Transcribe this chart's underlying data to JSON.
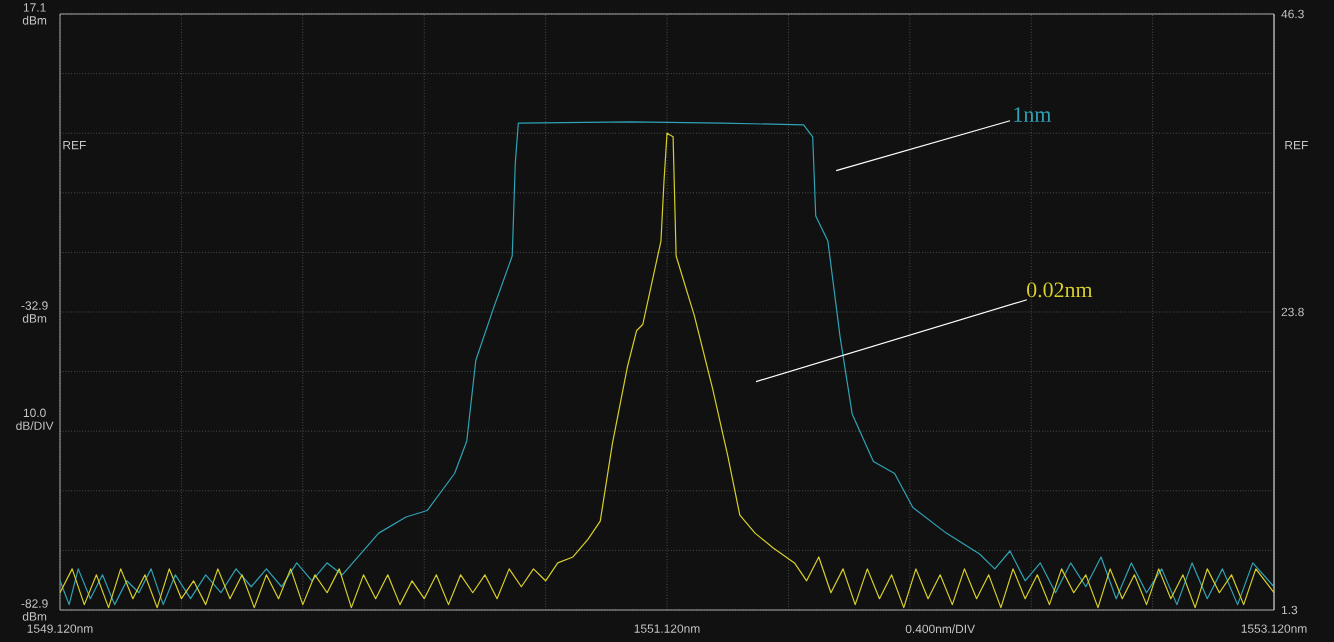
{
  "chart_data": {
    "type": "line",
    "xlim": [
      1549.12,
      1553.12
    ],
    "ylim": [
      -82.9,
      17.1
    ],
    "y2lim": [
      1.3,
      46.3
    ],
    "xticks": [
      {
        "value": 1549.12,
        "label": "1549.120nm"
      },
      {
        "value": 1549.52,
        "label": null
      },
      {
        "value": 1549.92,
        "label": null
      },
      {
        "value": 1550.32,
        "label": null
      },
      {
        "value": 1550.72,
        "label": null
      },
      {
        "value": 1551.12,
        "label": "1551.120nm"
      },
      {
        "value": 1551.52,
        "label": null
      },
      {
        "value": 1551.92,
        "label": null
      },
      {
        "value": 1552.32,
        "label": null
      },
      {
        "value": 1552.72,
        "label": null
      },
      {
        "value": 1553.12,
        "label": "1553.120nm"
      }
    ],
    "yticks": [
      {
        "value": -82.9,
        "label": "-82.9 dBm"
      },
      {
        "value": -72.9,
        "label": null
      },
      {
        "value": -62.9,
        "label": null
      },
      {
        "value": -52.9,
        "label": null
      },
      {
        "value": -42.9,
        "label": null
      },
      {
        "value": -32.9,
        "label": "-32.9 dBm"
      },
      {
        "value": -22.9,
        "label": null
      },
      {
        "value": -12.9,
        "label": null
      },
      {
        "value": -2.9,
        "label": null
      },
      {
        "value": 7.1,
        "label": null
      },
      {
        "value": 17.1,
        "label": "17.1 dBm"
      }
    ],
    "y2ticks": [
      1.3,
      23.8,
      46.3
    ],
    "grid": true,
    "xlabel": "0.400nm/DIV",
    "ylabel": "10.0 dB/DIV",
    "annotations": [
      "REF",
      "REF"
    ],
    "series": [
      {
        "name": "1nm",
        "color": "#2fa3b5",
        "x": [
          1549.12,
          1549.15,
          1549.18,
          1549.22,
          1549.26,
          1549.3,
          1549.34,
          1549.38,
          1549.42,
          1549.46,
          1549.5,
          1549.55,
          1549.6,
          1549.65,
          1549.7,
          1549.75,
          1549.8,
          1549.85,
          1549.9,
          1549.95,
          1550.0,
          1550.05,
          1550.11,
          1550.17,
          1550.26,
          1550.33,
          1550.42,
          1550.46,
          1550.49,
          1550.55,
          1550.61,
          1550.62,
          1550.63,
          1551.0,
          1551.3,
          1551.57,
          1551.6,
          1551.61,
          1551.65,
          1551.69,
          1551.73,
          1551.8,
          1551.87,
          1551.93,
          1552.04,
          1552.15,
          1552.2,
          1552.25,
          1552.3,
          1552.35,
          1552.4,
          1552.45,
          1552.5,
          1552.55,
          1552.6,
          1552.65,
          1552.7,
          1552.75,
          1552.8,
          1552.85,
          1552.9,
          1552.95,
          1553.0,
          1553.05,
          1553.12
        ],
        "values": [
          -78,
          -82,
          -76,
          -81,
          -77,
          -82,
          -78,
          -80,
          -76,
          -82,
          -77,
          -81,
          -77,
          -80,
          -76,
          -79,
          -76,
          -79,
          -75,
          -78,
          -75,
          -77,
          -73.5,
          -70,
          -67.3,
          -66.2,
          -60,
          -54.6,
          -41,
          -32,
          -23.5,
          -8,
          -1.2,
          -1.0,
          -1.2,
          -1.5,
          -3.5,
          -16.8,
          -21,
          -37,
          -50,
          -58,
          -60,
          -65.7,
          -70,
          -73.5,
          -76,
          -73,
          -78,
          -75,
          -80,
          -75,
          -79,
          -74,
          -81,
          -75,
          -80,
          -76,
          -82,
          -75,
          -81,
          -76,
          -82,
          -75,
          -79
        ]
      },
      {
        "name": "0.02nm",
        "color": "#d8cf2a",
        "x": [
          1549.12,
          1549.16,
          1549.2,
          1549.24,
          1549.28,
          1549.32,
          1549.36,
          1549.4,
          1549.44,
          1549.48,
          1549.52,
          1549.56,
          1549.6,
          1549.64,
          1549.68,
          1549.72,
          1549.76,
          1549.8,
          1549.84,
          1549.88,
          1549.92,
          1549.96,
          1550.0,
          1550.04,
          1550.08,
          1550.12,
          1550.16,
          1550.2,
          1550.24,
          1550.28,
          1550.32,
          1550.36,
          1550.4,
          1550.44,
          1550.48,
          1550.52,
          1550.56,
          1550.6,
          1550.64,
          1550.68,
          1550.72,
          1550.76,
          1550.81,
          1550.86,
          1550.9,
          1550.94,
          1550.99,
          1551.02,
          1551.04,
          1551.1,
          1551.11,
          1551.12,
          1551.14,
          1551.15,
          1551.21,
          1551.27,
          1551.32,
          1551.36,
          1551.41,
          1551.47,
          1551.54,
          1551.58,
          1551.62,
          1551.66,
          1551.7,
          1551.74,
          1551.78,
          1551.82,
          1551.86,
          1551.9,
          1551.94,
          1551.98,
          1552.02,
          1552.06,
          1552.1,
          1552.14,
          1552.18,
          1552.22,
          1552.26,
          1552.3,
          1552.34,
          1552.38,
          1552.42,
          1552.46,
          1552.5,
          1552.54,
          1552.58,
          1552.62,
          1552.66,
          1552.7,
          1552.74,
          1552.78,
          1552.82,
          1552.86,
          1552.9,
          1552.94,
          1552.98,
          1553.02,
          1553.06,
          1553.12
        ],
        "values": [
          -80,
          -76,
          -82,
          -77,
          -82.5,
          -76,
          -81,
          -77,
          -82.5,
          -76,
          -81,
          -78,
          -82,
          -76,
          -81,
          -77,
          -82.5,
          -77,
          -81,
          -76,
          -82,
          -77,
          -80,
          -76,
          -82.5,
          -77,
          -81,
          -77,
          -82,
          -78,
          -81,
          -77,
          -82,
          -77,
          -80,
          -77,
          -81,
          -76,
          -79,
          -76,
          -78,
          -75,
          -74,
          -71,
          -68,
          -55,
          -42,
          -36,
          -35,
          -21,
          -11,
          -2.9,
          -3.5,
          -23.5,
          -33.5,
          -45.7,
          -57,
          -67,
          -70,
          -72.5,
          -75,
          -78,
          -74,
          -80,
          -76,
          -82,
          -76,
          -81,
          -77,
          -82.5,
          -76,
          -81,
          -77,
          -82,
          -76,
          -81,
          -77,
          -82.5,
          -76,
          -81,
          -77,
          -82,
          -76,
          -80,
          -77,
          -82.5,
          -76,
          -81,
          -77,
          -82,
          -76,
          -81,
          -77,
          -82.5,
          -76,
          -80,
          -77,
          -82,
          -76,
          -80
        ]
      }
    ]
  }
}
